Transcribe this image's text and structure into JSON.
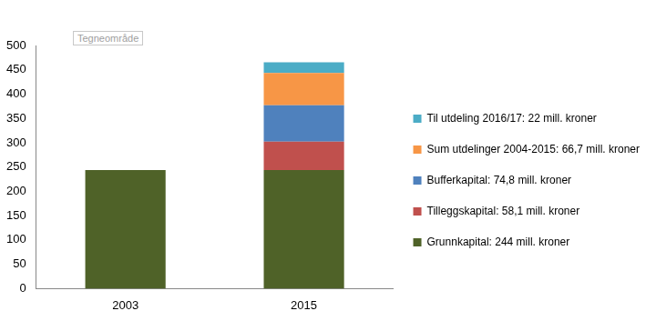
{
  "chart_data": {
    "type": "bar",
    "stacked": true,
    "legend": "right",
    "grid": false,
    "annotations": [
      "Tegneområde"
    ],
    "categories": [
      "2003",
      "2015"
    ],
    "series": [
      {
        "name": "Grunnkapital: 244 mill. kroner",
        "color": "#4f6228",
        "values": [
          244,
          244
        ]
      },
      {
        "name": "Tilleggskapital: 58,1 mill. kroner",
        "color": "#c0504d",
        "values": [
          null,
          58.1
        ]
      },
      {
        "name": "Bufferkapital: 74,8 mill. kroner",
        "color": "#4f81bd",
        "values": [
          null,
          74.8
        ]
      },
      {
        "name": "Sum utdelinger 2004-2015: 66,7 mill. kroner",
        "color": "#f79646",
        "values": [
          null,
          66.7
        ]
      },
      {
        "name": "Til utdeling 2016/17: 22 mill. kroner",
        "color": "#4bacc6",
        "values": [
          null,
          22
        ]
      }
    ],
    "ylim": [
      0,
      500
    ],
    "yticks": [
      0,
      50,
      100,
      150,
      200,
      250,
      300,
      350,
      400,
      450,
      500
    ]
  }
}
